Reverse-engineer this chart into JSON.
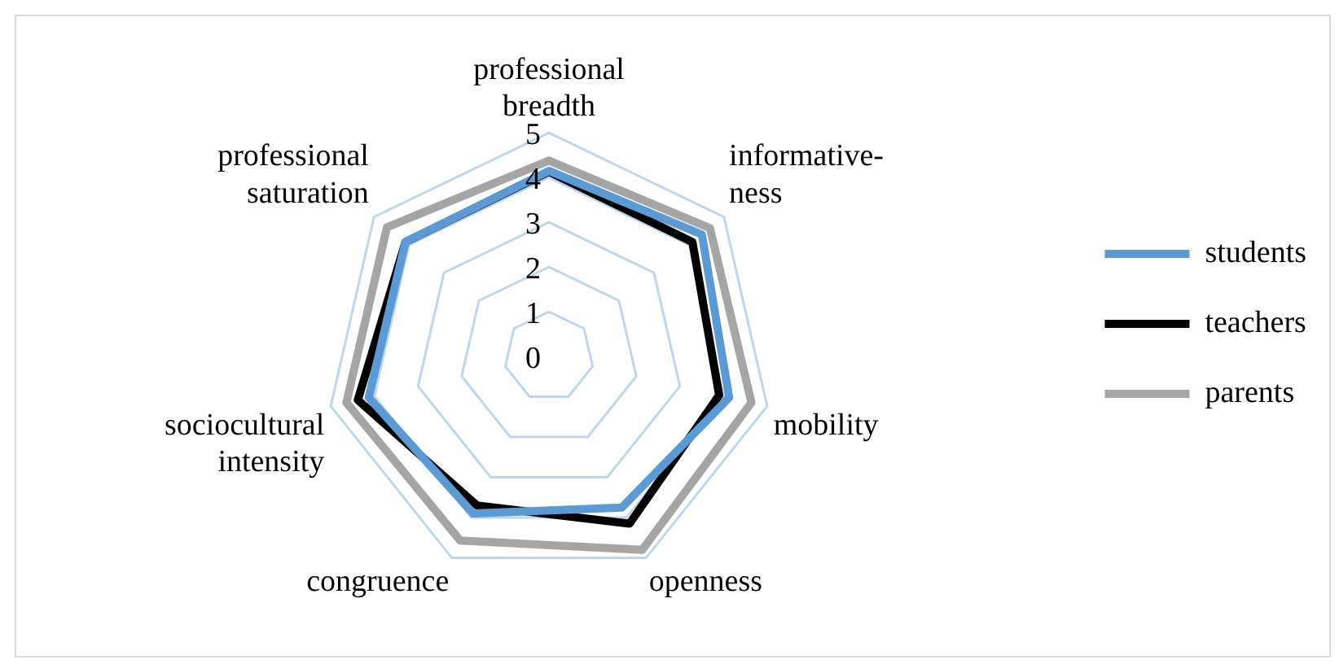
{
  "chart_data": {
    "type": "radar",
    "categories": [
      "professional breadth",
      "informative- ness",
      "mobility",
      "openness",
      "congruence",
      "sociocultural intensity",
      "professional saturation"
    ],
    "series": [
      {
        "name": "students",
        "color": "#5b9bd5",
        "values": [
          4.15,
          4.37,
          4.13,
          3.75,
          3.9,
          4.13,
          4.1
        ]
      },
      {
        "name": "teachers",
        "color": "#000000",
        "values": [
          4.13,
          4.1,
          3.9,
          4.15,
          3.7,
          4.38,
          4.1
        ]
      },
      {
        "name": "parents",
        "color": "#a5a5a5",
        "values": [
          4.38,
          4.6,
          4.64,
          4.8,
          4.57,
          4.64,
          4.63
        ]
      }
    ],
    "ylim": [
      0,
      5
    ],
    "yticks": [
      0,
      1,
      2,
      3,
      4,
      5
    ],
    "grid": true,
    "legend": "right",
    "marker": "none",
    "line_style": "solid"
  }
}
